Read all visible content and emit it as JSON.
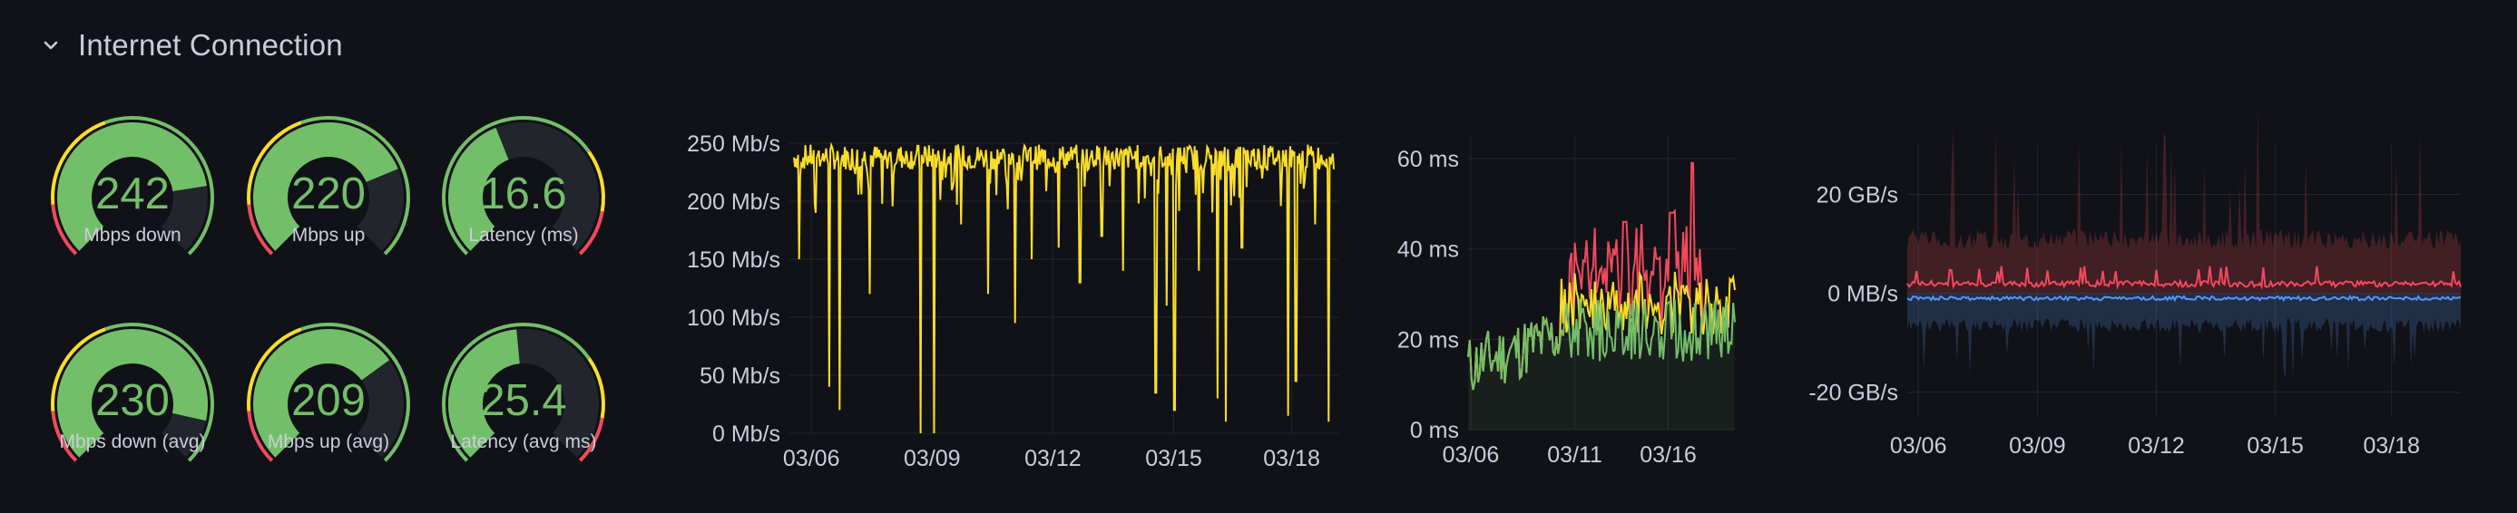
{
  "row": {
    "title": "Internet Connection"
  },
  "gauges": [
    {
      "value": "242",
      "label": "Mbps down",
      "fraction": 0.8,
      "color": "#73bf69"
    },
    {
      "value": "220",
      "label": "Mbps up",
      "fraction": 0.75,
      "color": "#73bf69"
    },
    {
      "value": "16.6",
      "label": "Latency (ms)",
      "fraction": 0.42,
      "color": "#73bf69"
    },
    {
      "value": "230",
      "label": "Mbps down (avg)",
      "fraction": 0.88,
      "color": "#73bf69"
    },
    {
      "value": "209",
      "label": "Mbps up (avg)",
      "fraction": 0.7,
      "color": "#73bf69"
    },
    {
      "value": "25.4",
      "label": "Latency (avg ms)",
      "fraction": 0.48,
      "color": "#73bf69"
    }
  ],
  "colors": {
    "background": "#111217",
    "green": "#73bf69",
    "yellow": "#fade2a",
    "red": "#f2495c",
    "blue": "#5794f2",
    "track": "#22252b",
    "grid": "#24262d"
  },
  "chart_data": [
    {
      "type": "line",
      "series": [
        {
          "name": "",
          "color": "#fade2a"
        }
      ],
      "x_ticks": [
        "03/06",
        "03/09",
        "03/12",
        "03/15",
        "03/18"
      ],
      "x_range": [
        "03/05",
        "03/20"
      ],
      "y_ticks": [
        "0 Mb/s",
        "50 Mb/s",
        "100 Mb/s",
        "150 Mb/s",
        "200 Mb/s",
        "250 Mb/s"
      ],
      "ylim": [
        0,
        250
      ],
      "baseline": 238,
      "dips": [
        [
          0.01,
          150
        ],
        [
          0.04,
          190
        ],
        [
          0.065,
          40
        ],
        [
          0.085,
          20
        ],
        [
          0.14,
          120
        ],
        [
          0.235,
          0
        ],
        [
          0.26,
          0
        ],
        [
          0.31,
          180
        ],
        [
          0.36,
          120
        ],
        [
          0.41,
          95
        ],
        [
          0.44,
          150
        ],
        [
          0.49,
          160
        ],
        [
          0.53,
          130
        ],
        [
          0.57,
          170
        ],
        [
          0.61,
          140
        ],
        [
          0.67,
          35
        ],
        [
          0.69,
          110
        ],
        [
          0.705,
          20
        ],
        [
          0.75,
          140
        ],
        [
          0.785,
          30
        ],
        [
          0.8,
          10
        ],
        [
          0.83,
          160
        ],
        [
          0.915,
          15
        ],
        [
          0.93,
          45
        ],
        [
          0.965,
          180
        ],
        [
          0.99,
          10
        ]
      ],
      "grid": true
    },
    {
      "type": "area",
      "series": [
        {
          "name": "",
          "color": "#73bf69"
        },
        {
          "name": "",
          "color": "#fade2a"
        },
        {
          "name": "",
          "color": "#f2495c"
        }
      ],
      "x_ticks": [
        "03/06",
        "03/11",
        "03/16"
      ],
      "y_ticks": [
        "0 ms",
        "20 ms",
        "40 ms",
        "60 ms"
      ],
      "ylim": [
        0,
        65
      ],
      "grid": true
    },
    {
      "type": "area",
      "series": [
        {
          "name": "",
          "color": "#f2495c"
        },
        {
          "name": "",
          "color": "#5794f2"
        }
      ],
      "x_ticks": [
        "03/06",
        "03/09",
        "03/12",
        "03/15",
        "03/18"
      ],
      "y_ticks": [
        "-20 GB/s",
        "0 MB/s",
        "20 GB/s"
      ],
      "ylim": [
        -25,
        30
      ],
      "grid": true
    }
  ]
}
